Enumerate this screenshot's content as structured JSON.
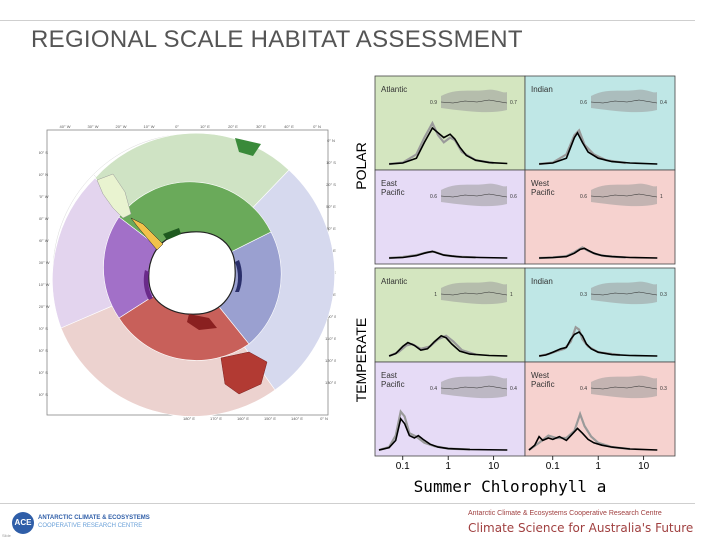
{
  "title": "REGIONAL SCALE HABITAT ASSESSMENT",
  "map": {
    "lon_labels_top": [
      "40° W",
      "30° W",
      "20° W",
      "10° W",
      "0°",
      "10° E",
      "20° E",
      "30° E",
      "40° E",
      "0° N"
    ],
    "lon_labels_bottom": [
      "180° E",
      "170° E",
      "160° E",
      "150° E",
      "140° E",
      "0° N"
    ],
    "lat_labels_left": [
      "50° S",
      "60° N",
      "70° W",
      "80° W",
      "90° W",
      "100° W",
      "110° W",
      "120° W",
      "20° S",
      "30° S",
      "40° S",
      "50° S"
    ],
    "lat_labels_right": [
      "0° N",
      "10° S",
      "20° S",
      "50° E",
      "60° E",
      "70° E",
      "80° E",
      "90° E",
      "100° E",
      "110° E",
      "120° E",
      "130° E"
    ],
    "colors": {
      "atlantic": "#6aaa5a",
      "atlantic_temperate": "#cfe3c4",
      "indian": "#9aa0d0",
      "indian_temperate": "#d6d9ee",
      "west_pacific": "#c8605a",
      "west_pacific_temperate": "#ecd2cf",
      "east_pacific": "#a270c8",
      "east_pacific_temperate": "#e3d4ee",
      "land": "#ffffff"
    }
  },
  "chart_data": {
    "type": "line",
    "title": "",
    "xlabel": "Summer Chlorophyll a",
    "xscale": "log",
    "xlim": [
      0.03,
      40
    ],
    "xticks": [
      0.1,
      1,
      10
    ],
    "xtick_labels": [
      "0.1",
      "1",
      "10"
    ],
    "row_labels": [
      "POLAR",
      "TEMPERATE"
    ],
    "legend_position": "none",
    "panels": [
      {
        "group": "POLAR",
        "region": "Atlantic",
        "color": "#d4e6c0",
        "inset_left": "0.9",
        "inset_right": "0.7",
        "curve": [
          [
            0.05,
            0.0
          ],
          [
            0.1,
            0.02
          ],
          [
            0.2,
            0.12
          ],
          [
            0.3,
            0.45
          ],
          [
            0.45,
            0.75
          ],
          [
            0.6,
            0.65
          ],
          [
            0.8,
            0.55
          ],
          [
            1.1,
            0.62
          ],
          [
            1.4,
            0.52
          ],
          [
            1.8,
            0.35
          ],
          [
            2.5,
            0.18
          ],
          [
            4,
            0.08
          ],
          [
            8,
            0.03
          ],
          [
            20,
            0.01
          ]
        ],
        "curve_grey": [
          [
            0.05,
            0.0
          ],
          [
            0.1,
            0.03
          ],
          [
            0.2,
            0.2
          ],
          [
            0.3,
            0.55
          ],
          [
            0.45,
            0.85
          ],
          [
            0.6,
            0.6
          ],
          [
            0.8,
            0.45
          ],
          [
            1.1,
            0.55
          ],
          [
            1.4,
            0.5
          ],
          [
            2,
            0.25
          ],
          [
            4,
            0.08
          ],
          [
            10,
            0.02
          ]
        ]
      },
      {
        "group": "POLAR",
        "region": "Indian",
        "color": "#bfe7e6",
        "inset_left": "0.6",
        "inset_right": "0.4",
        "curve": [
          [
            0.05,
            0.0
          ],
          [
            0.1,
            0.02
          ],
          [
            0.2,
            0.12
          ],
          [
            0.3,
            0.55
          ],
          [
            0.35,
            0.65
          ],
          [
            0.45,
            0.45
          ],
          [
            0.6,
            0.25
          ],
          [
            1,
            0.12
          ],
          [
            2,
            0.05
          ],
          [
            5,
            0.02
          ],
          [
            20,
            0.0
          ]
        ],
        "curve_grey": [
          [
            0.05,
            0.0
          ],
          [
            0.1,
            0.03
          ],
          [
            0.2,
            0.2
          ],
          [
            0.3,
            0.6
          ],
          [
            0.38,
            0.7
          ],
          [
            0.5,
            0.4
          ],
          [
            0.8,
            0.2
          ],
          [
            1.5,
            0.08
          ],
          [
            4,
            0.02
          ]
        ]
      },
      {
        "group": "POLAR",
        "region": "East Pacific",
        "color": "#e6dbf6",
        "inset_left": "0.6",
        "inset_right": "0.6",
        "curve": [
          [
            0.05,
            0.0
          ],
          [
            0.1,
            0.01
          ],
          [
            0.2,
            0.05
          ],
          [
            0.3,
            0.1
          ],
          [
            0.45,
            0.14
          ],
          [
            0.6,
            0.1
          ],
          [
            0.8,
            0.06
          ],
          [
            1.2,
            0.04
          ],
          [
            2,
            0.02
          ],
          [
            5,
            0.01
          ],
          [
            20,
            0.0
          ]
        ],
        "curve_grey": [
          [
            0.05,
            0.0
          ],
          [
            0.1,
            0.02
          ],
          [
            0.2,
            0.06
          ],
          [
            0.35,
            0.12
          ],
          [
            0.5,
            0.13
          ],
          [
            0.8,
            0.06
          ],
          [
            1.5,
            0.03
          ],
          [
            4,
            0.01
          ]
        ]
      },
      {
        "group": "POLAR",
        "region": "West Pacific",
        "color": "#f6d2cf",
        "inset_left": "0.6",
        "inset_right": "1",
        "curve": [
          [
            0.05,
            0.0
          ],
          [
            0.1,
            0.01
          ],
          [
            0.2,
            0.03
          ],
          [
            0.3,
            0.1
          ],
          [
            0.4,
            0.18
          ],
          [
            0.5,
            0.2
          ],
          [
            0.6,
            0.16
          ],
          [
            0.8,
            0.1
          ],
          [
            1.2,
            0.05
          ],
          [
            2,
            0.03
          ],
          [
            5,
            0.01
          ],
          [
            20,
            0.0
          ]
        ],
        "curve_grey": [
          [
            0.05,
            0.0
          ],
          [
            0.1,
            0.01
          ],
          [
            0.2,
            0.04
          ],
          [
            0.3,
            0.12
          ],
          [
            0.45,
            0.22
          ],
          [
            0.6,
            0.15
          ],
          [
            0.9,
            0.08
          ],
          [
            1.5,
            0.04
          ],
          [
            4,
            0.01
          ]
        ]
      },
      {
        "group": "TEMPERATE",
        "region": "Atlantic",
        "color": "#d4e6c0",
        "inset_left": "1",
        "inset_right": "1",
        "curve": [
          [
            0.05,
            0.0
          ],
          [
            0.07,
            0.05
          ],
          [
            0.1,
            0.2
          ],
          [
            0.13,
            0.28
          ],
          [
            0.18,
            0.22
          ],
          [
            0.25,
            0.12
          ],
          [
            0.35,
            0.15
          ],
          [
            0.5,
            0.3
          ],
          [
            0.7,
            0.42
          ],
          [
            0.9,
            0.38
          ],
          [
            1.2,
            0.25
          ],
          [
            1.8,
            0.1
          ],
          [
            3,
            0.04
          ],
          [
            8,
            0.01
          ],
          [
            20,
            0.0
          ]
        ],
        "curve_grey": [
          [
            0.05,
            0.0
          ],
          [
            0.08,
            0.08
          ],
          [
            0.12,
            0.22
          ],
          [
            0.16,
            0.25
          ],
          [
            0.25,
            0.15
          ],
          [
            0.4,
            0.2
          ],
          [
            0.6,
            0.35
          ],
          [
            0.9,
            0.42
          ],
          [
            1.3,
            0.3
          ],
          [
            2,
            0.12
          ],
          [
            4,
            0.03
          ]
        ]
      },
      {
        "group": "TEMPERATE",
        "region": "Indian",
        "color": "#bfe7e6",
        "inset_left": "0.3",
        "inset_right": "0.3",
        "curve": [
          [
            0.05,
            0.0
          ],
          [
            0.07,
            0.02
          ],
          [
            0.1,
            0.08
          ],
          [
            0.15,
            0.15
          ],
          [
            0.2,
            0.18
          ],
          [
            0.25,
            0.35
          ],
          [
            0.3,
            0.45
          ],
          [
            0.38,
            0.5
          ],
          [
            0.45,
            0.42
          ],
          [
            0.55,
            0.25
          ],
          [
            0.7,
            0.15
          ],
          [
            1,
            0.08
          ],
          [
            2,
            0.03
          ],
          [
            5,
            0.01
          ],
          [
            20,
            0.0
          ]
        ],
        "curve_grey": [
          [
            0.05,
            0.0
          ],
          [
            0.08,
            0.04
          ],
          [
            0.12,
            0.1
          ],
          [
            0.18,
            0.15
          ],
          [
            0.25,
            0.3
          ],
          [
            0.32,
            0.6
          ],
          [
            0.38,
            0.55
          ],
          [
            0.45,
            0.35
          ],
          [
            0.6,
            0.2
          ],
          [
            1,
            0.08
          ],
          [
            3,
            0.02
          ]
        ]
      },
      {
        "group": "TEMPERATE",
        "region": "East Pacific",
        "color": "#e6dbf6",
        "inset_left": "0.4",
        "inset_right": "0.4",
        "curve": [
          [
            0.03,
            0.0
          ],
          [
            0.05,
            0.05
          ],
          [
            0.07,
            0.2
          ],
          [
            0.09,
            0.65
          ],
          [
            0.11,
            0.55
          ],
          [
            0.14,
            0.3
          ],
          [
            0.18,
            0.25
          ],
          [
            0.22,
            0.3
          ],
          [
            0.28,
            0.22
          ],
          [
            0.4,
            0.12
          ],
          [
            0.6,
            0.06
          ],
          [
            1,
            0.03
          ],
          [
            3,
            0.01
          ],
          [
            20,
            0.0
          ]
        ],
        "curve_grey": [
          [
            0.03,
            0.0
          ],
          [
            0.05,
            0.06
          ],
          [
            0.07,
            0.3
          ],
          [
            0.09,
            0.8
          ],
          [
            0.11,
            0.7
          ],
          [
            0.14,
            0.35
          ],
          [
            0.2,
            0.28
          ],
          [
            0.3,
            0.15
          ],
          [
            0.5,
            0.08
          ],
          [
            1,
            0.03
          ],
          [
            3,
            0.01
          ]
        ]
      },
      {
        "group": "TEMPERATE",
        "region": "West Pacific",
        "color": "#f6d2cf",
        "inset_left": "0.4",
        "inset_right": "0.3",
        "curve": [
          [
            0.03,
            0.0
          ],
          [
            0.04,
            0.1
          ],
          [
            0.05,
            0.28
          ],
          [
            0.06,
            0.2
          ],
          [
            0.08,
            0.25
          ],
          [
            0.1,
            0.22
          ],
          [
            0.14,
            0.28
          ],
          [
            0.2,
            0.2
          ],
          [
            0.28,
            0.35
          ],
          [
            0.35,
            0.45
          ],
          [
            0.45,
            0.35
          ],
          [
            0.6,
            0.22
          ],
          [
            0.8,
            0.15
          ],
          [
            1.2,
            0.1
          ],
          [
            2,
            0.06
          ],
          [
            5,
            0.02
          ],
          [
            20,
            0.0
          ]
        ],
        "curve_grey": [
          [
            0.03,
            0.0
          ],
          [
            0.05,
            0.15
          ],
          [
            0.08,
            0.3
          ],
          [
            0.12,
            0.25
          ],
          [
            0.2,
            0.25
          ],
          [
            0.3,
            0.4
          ],
          [
            0.4,
            0.75
          ],
          [
            0.5,
            0.5
          ],
          [
            0.7,
            0.28
          ],
          [
            1,
            0.15
          ],
          [
            2,
            0.06
          ],
          [
            5,
            0.02
          ]
        ]
      }
    ]
  },
  "footer": {
    "logo_text": "ACE",
    "org_line1": "ANTARCTIC CLIMATE & ECOSYSTEMS",
    "org_line2": "COOPERATIVE RESEARCH CENTRE",
    "crc_name": "Antarctic Climate & Ecosystems Cooperative Research Centre",
    "tagline": "Climate Science for Australia's Future",
    "tiny": "Slide"
  }
}
